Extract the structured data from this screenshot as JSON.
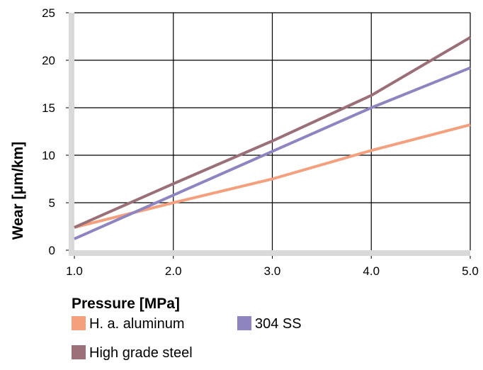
{
  "chart_data": {
    "type": "line",
    "xlabel": "Pressure [MPa]",
    "ylabel": "Wear [μm/km]",
    "xlim": [
      1.0,
      5.0
    ],
    "ylim": [
      0,
      25
    ],
    "x_ticks": [
      "1.0",
      "2.0",
      "3.0",
      "4.0",
      "5.0"
    ],
    "y_ticks": [
      "0",
      "5",
      "10",
      "15",
      "20",
      "25"
    ],
    "grid": true,
    "legend_position": "bottom",
    "x": [
      1.0,
      2.0,
      3.0,
      4.0,
      5.0
    ],
    "series": [
      {
        "name": "H. a. aluminum",
        "color": "#f4a07e",
        "values": [
          2.4,
          5.0,
          7.5,
          10.5,
          13.2
        ]
      },
      {
        "name": "304 SS",
        "color": "#8e85c0",
        "values": [
          1.2,
          5.8,
          10.4,
          15.0,
          19.2
        ]
      },
      {
        "name": "High grade steel",
        "color": "#9a6f78",
        "values": [
          2.4,
          7.0,
          11.5,
          16.3,
          22.4
        ]
      }
    ]
  }
}
